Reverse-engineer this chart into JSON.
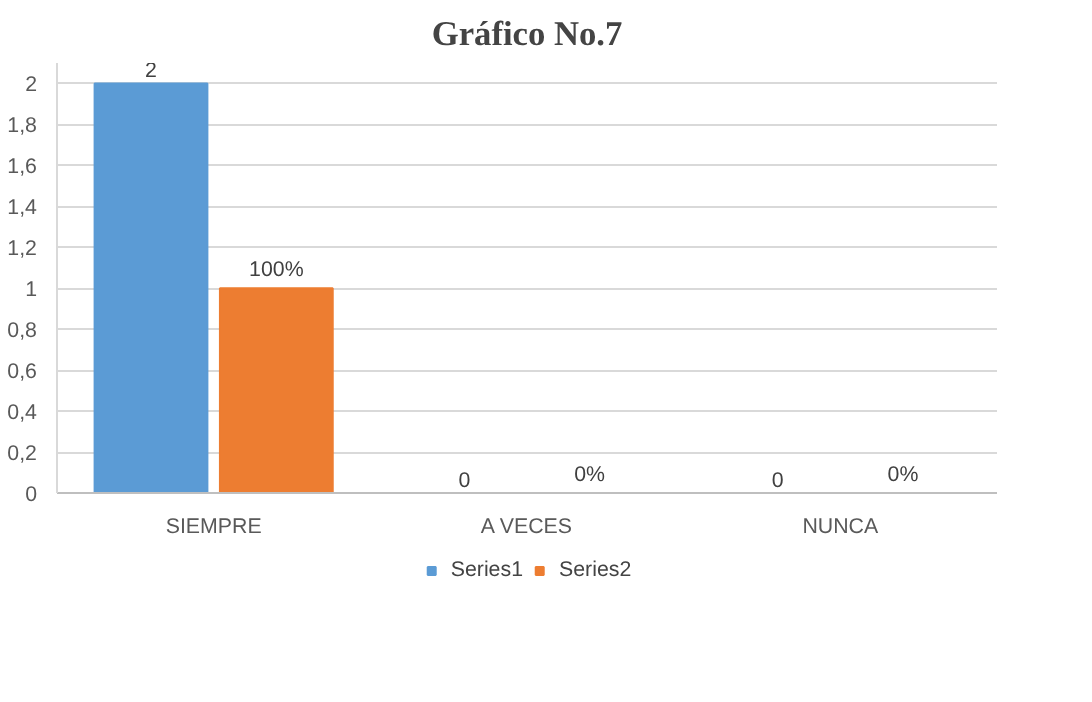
{
  "chart_data": {
    "type": "bar",
    "title": "Gráfico No.7",
    "categories": [
      "SIEMPRE",
      "A VECES",
      "NUNCA"
    ],
    "series": [
      {
        "name": "Series1",
        "color": "#5b9bd5",
        "values": [
          2,
          0,
          0
        ],
        "value_labels": [
          "2",
          "0",
          "0"
        ]
      },
      {
        "name": "Series2",
        "color": "#ed7d31",
        "values": [
          1,
          0,
          0
        ],
        "value_labels": [
          "100%",
          "0%",
          "0%"
        ]
      }
    ],
    "ylim": [
      0,
      2.1
    ],
    "yticks": [
      0,
      {
        "value": 0.2,
        "label": "0,2"
      },
      {
        "value": 0.4,
        "label": "0,4"
      },
      {
        "value": 0.6,
        "label": "0,6"
      },
      {
        "value": 0.8,
        "label": "0,8"
      },
      1,
      {
        "value": 1.2,
        "label": "1,2"
      },
      {
        "value": 1.4,
        "label": "1,4"
      },
      {
        "value": 1.6,
        "label": "1,6"
      },
      {
        "value": 1.8,
        "label": "1,8"
      },
      2
    ],
    "grid": "y",
    "legend": "bottom"
  }
}
